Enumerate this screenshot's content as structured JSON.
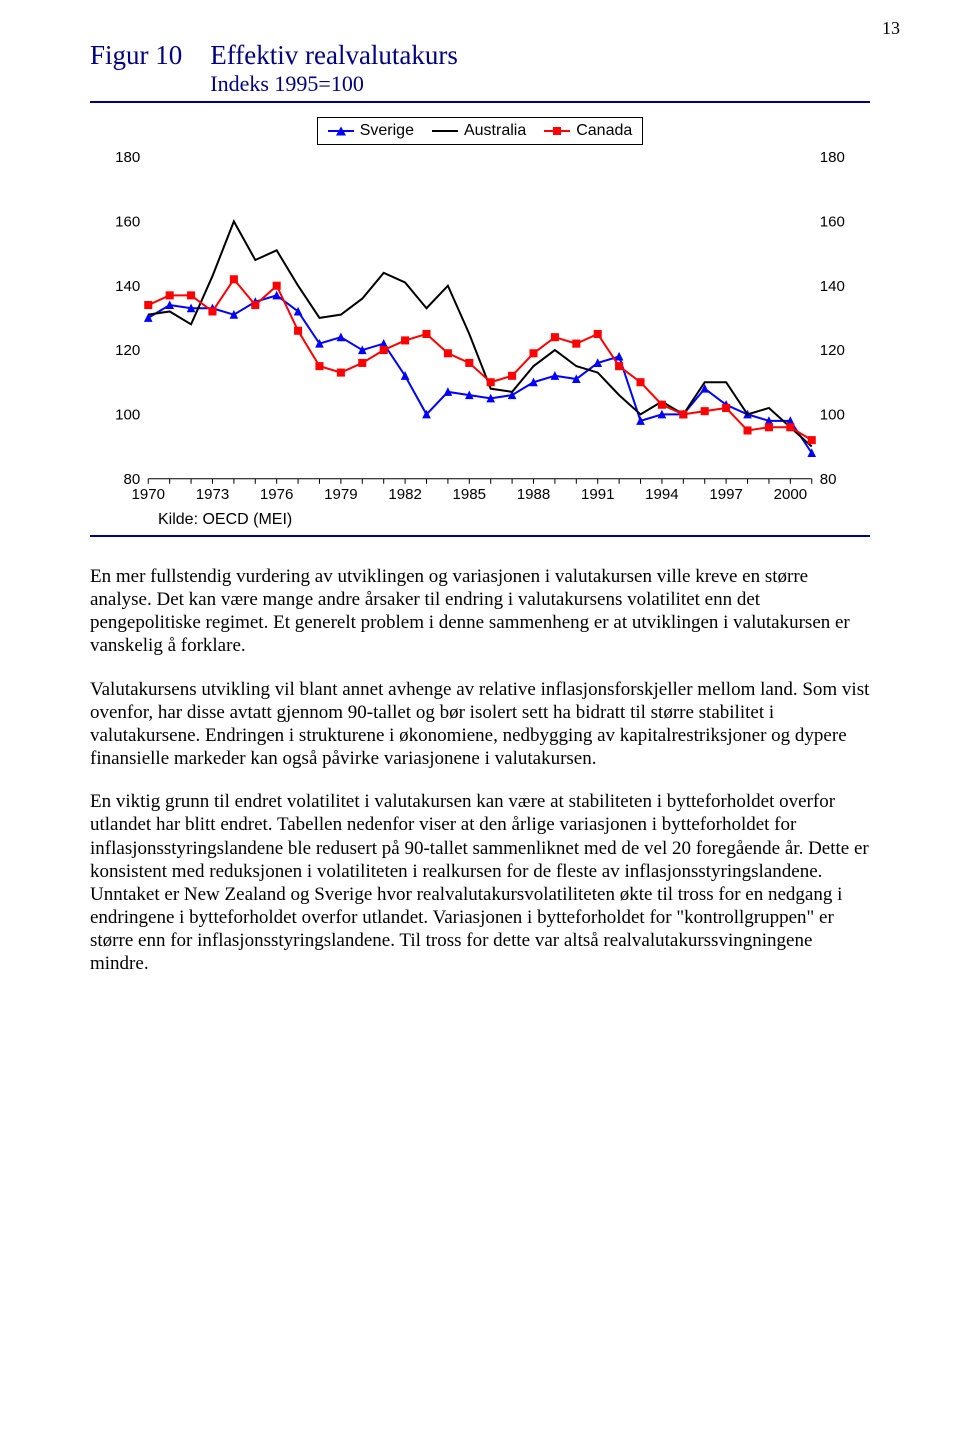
{
  "page_number": "13",
  "figure": {
    "label": "Figur 10",
    "title": "Effektiv realvalutakurs",
    "subtitle": "Indeks 1995=100",
    "source": "Kilde: OECD (MEI)",
    "legend": {
      "items": [
        {
          "label": "Sverige",
          "color": "#0000ff",
          "marker": "triangle"
        },
        {
          "label": "Australia",
          "color": "#000000",
          "marker": "none"
        },
        {
          "label": "Canada",
          "color": "#ff0000",
          "marker": "square"
        }
      ]
    },
    "chart": {
      "type": "line",
      "background_color": "#ffffff",
      "years": [
        1970,
        1971,
        1972,
        1973,
        1974,
        1975,
        1976,
        1977,
        1978,
        1979,
        1980,
        1981,
        1982,
        1983,
        1984,
        1985,
        1986,
        1987,
        1988,
        1989,
        1990,
        1991,
        1992,
        1993,
        1994,
        1995,
        1996,
        1997,
        1998,
        1999,
        2000,
        2001
      ],
      "ylim": [
        80,
        180
      ],
      "ytick_step": 20,
      "yticks": [
        80,
        100,
        120,
        140,
        160,
        180
      ],
      "xticks": [
        1970,
        1973,
        1976,
        1979,
        1982,
        1985,
        1988,
        1991,
        1994,
        1997,
        2000
      ],
      "x_tick_labels": [
        "1970",
        "1973",
        "1976",
        "1979",
        "1982",
        "1985",
        "1988",
        "1991",
        "1994",
        "1997",
        "2000"
      ],
      "line_width": 2,
      "marker_size": 7,
      "label_fontsize": 15,
      "font_family": "Arial",
      "series": [
        {
          "name": "Sverige",
          "color": "#0000ff",
          "marker": "triangle",
          "values": [
            130,
            134,
            133,
            133,
            131,
            135,
            137,
            132,
            122,
            124,
            120,
            122,
            112,
            100,
            107,
            106,
            105,
            106,
            110,
            112,
            111,
            116,
            118,
            98,
            100,
            100,
            108,
            103,
            100,
            98,
            98,
            88
          ]
        },
        {
          "name": "Australia",
          "color": "#000000",
          "marker": "none",
          "values": [
            131,
            132,
            128,
            143,
            160,
            148,
            151,
            140,
            130,
            131,
            136,
            144,
            141,
            133,
            140,
            125,
            108,
            107,
            115,
            120,
            115,
            113,
            106,
            100,
            104,
            100,
            110,
            110,
            100,
            102,
            96,
            90
          ]
        },
        {
          "name": "Canada",
          "color": "#ff0000",
          "marker": "square",
          "values": [
            134,
            137,
            137,
            132,
            142,
            134,
            140,
            126,
            115,
            113,
            116,
            120,
            123,
            125,
            119,
            116,
            110,
            112,
            119,
            124,
            122,
            125,
            115,
            110,
            103,
            100,
            101,
            102,
            95,
            96,
            96,
            92
          ]
        }
      ]
    }
  },
  "paragraphs": {
    "p1": "En mer fullstendig vurdering av utviklingen og variasjonen i valutakursen ville kreve en større analyse. Det kan være mange andre årsaker til endring i valutakursens volatilitet enn det pengepolitiske regimet. Et generelt problem i denne sammenheng er at utviklingen i valutakursen er vanskelig å forklare.",
    "p2": "Valutakursens utvikling vil blant annet avhenge av relative inflasjonsforskjeller mellom land. Som vist ovenfor, har disse avtatt gjennom 90-tallet og bør isolert sett ha bidratt til større stabilitet i valutakursene. Endringen i strukturene i økonomiene, nedbygging av kapitalrestriksjoner og dypere finansielle markeder kan også påvirke variasjonene i valutakursen.",
    "p3": "En viktig grunn til endret volatilitet i valutakursen kan være at stabiliteten i bytteforholdet overfor utlandet har blitt endret. Tabellen nedenfor viser at den årlige variasjonen i bytteforholdet for inflasjonsstyringslandene ble redusert på 90-tallet sammenliknet med de vel 20 foregående år. Dette er konsistent med reduksjonen i volatiliteten i realkursen for de fleste av inflasjonsstyringslandene. Unntaket er New Zealand og Sverige hvor realvalutakursvolatiliteten økte til tross for en nedgang i endringene i bytteforholdet overfor utlandet. Variasjonen i bytteforholdet for \"kontrollgruppen\" er større enn for inflasjonsstyringslandene. Til tross for dette var altså realvalutakurssvingningene mindre."
  }
}
